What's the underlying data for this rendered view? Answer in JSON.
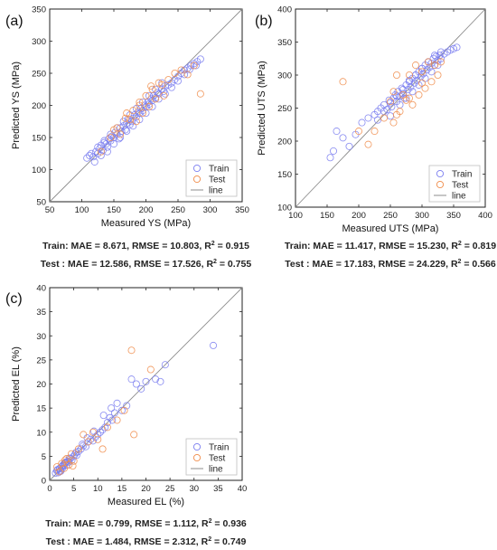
{
  "chart_data": [
    {
      "panel_label": "(a)",
      "type": "scatter",
      "xlabel": "Measured YS (MPa)",
      "ylabel": "Predicted YS (MPa)",
      "xlim": [
        50,
        350
      ],
      "ylim": [
        50,
        350
      ],
      "xticks": [
        50,
        100,
        150,
        200,
        250,
        300,
        350
      ],
      "yticks": [
        50,
        100,
        150,
        200,
        250,
        300,
        350
      ],
      "legend": [
        "Train",
        "Test",
        "line"
      ],
      "legend_position": "bottom-right",
      "identity_line": true,
      "metrics": {
        "train": {
          "prefix": "Train: ",
          "mae": "MAE = 8.671",
          "rmse": "RMSE = 10.803",
          "r2_label": "R",
          "r2_value": " = 0.915"
        },
        "test": {
          "prefix": "Test : ",
          "mae": "MAE = 12.586",
          "rmse": "RMSE = 17.526",
          "r2_label": "R",
          "r2_value": " = 0.755"
        }
      },
      "series": [
        {
          "name": "Train",
          "color": "#7b7ef0",
          "x": [
            108,
            112,
            118,
            122,
            125,
            128,
            130,
            133,
            135,
            138,
            140,
            142,
            145,
            147,
            150,
            152,
            155,
            158,
            160,
            162,
            165,
            168,
            170,
            172,
            175,
            178,
            180,
            182,
            185,
            188,
            190,
            192,
            195,
            198,
            200,
            203,
            205,
            208,
            210,
            212,
            215,
            218,
            220,
            225,
            228,
            230,
            235,
            240,
            245,
            250,
            255,
            260,
            265,
            270,
            275,
            280,
            285,
            115,
            125,
            135,
            145,
            155,
            165,
            175,
            185,
            195,
            205,
            215,
            225,
            140,
            160,
            180,
            200,
            220,
            150,
            170,
            190,
            210,
            230,
            130,
            120,
            240,
            250,
            260,
            268,
            278
          ],
          "y": [
            118,
            122,
            120,
            128,
            125,
            133,
            138,
            130,
            142,
            140,
            135,
            148,
            145,
            152,
            150,
            158,
            155,
            148,
            165,
            160,
            168,
            162,
            172,
            178,
            170,
            175,
            180,
            185,
            182,
            190,
            188,
            195,
            192,
            200,
            198,
            205,
            202,
            210,
            208,
            215,
            212,
            220,
            218,
            225,
            222,
            230,
            232,
            235,
            240,
            245,
            250,
            255,
            258,
            262,
            265,
            268,
            272,
            125,
            135,
            145,
            155,
            165,
            175,
            185,
            195,
            205,
            215,
            225,
            235,
            128,
            150,
            168,
            188,
            210,
            140,
            160,
            178,
            198,
            218,
            122,
            112,
            228,
            238,
            248,
            256,
            262
          ]
        },
        {
          "name": "Test",
          "color": "#f08c4a",
          "x": [
            130,
            145,
            155,
            160,
            168,
            175,
            180,
            185,
            190,
            195,
            200,
            205,
            210,
            215,
            220,
            228,
            235,
            245,
            255,
            265,
            275,
            285,
            150,
            170,
            190,
            208,
            225
          ],
          "y": [
            128,
            150,
            165,
            155,
            180,
            178,
            192,
            175,
            200,
            188,
            215,
            198,
            225,
            210,
            235,
            215,
            240,
            250,
            255,
            248,
            262,
            218,
            162,
            188,
            205,
            230,
            232
          ]
        }
      ]
    },
    {
      "panel_label": "(b)",
      "type": "scatter",
      "xlabel": "Measured UTS (MPa)",
      "ylabel": "Predicted UTS (MPa)",
      "xlim": [
        100,
        400
      ],
      "ylim": [
        100,
        400
      ],
      "xticks": [
        100,
        150,
        200,
        250,
        300,
        350,
        400
      ],
      "yticks": [
        100,
        150,
        200,
        250,
        300,
        350,
        400
      ],
      "legend": [
        "Train",
        "Test",
        "line"
      ],
      "legend_position": "bottom-right",
      "identity_line": true,
      "metrics": {
        "train": {
          "prefix": "Train: ",
          "mae": "MAE = 11.417",
          "rmse": "RMSE = 15.230",
          "r2_label": "R",
          "r2_value": " = 0.819"
        },
        "test": {
          "prefix": "Test : ",
          "mae": "MAE = 17.183",
          "rmse": "RMSE = 24.229",
          "r2_label": "R",
          "r2_value": " = 0.566"
        }
      },
      "series": [
        {
          "name": "Train",
          "color": "#7b7ef0",
          "x": [
            155,
            160,
            165,
            175,
            185,
            195,
            205,
            215,
            225,
            230,
            235,
            240,
            245,
            248,
            250,
            252,
            255,
            258,
            260,
            262,
            265,
            268,
            270,
            272,
            275,
            278,
            280,
            282,
            285,
            288,
            290,
            292,
            295,
            298,
            300,
            302,
            305,
            308,
            310,
            312,
            315,
            318,
            320,
            322,
            325,
            328,
            330,
            335,
            340,
            345,
            350,
            355,
            260,
            270,
            280,
            290,
            300,
            310,
            320,
            330,
            265,
            275,
            285,
            295,
            305,
            315,
            325,
            250,
            240,
            230
          ],
          "y": [
            175,
            185,
            215,
            205,
            192,
            210,
            228,
            235,
            240,
            245,
            250,
            255,
            248,
            262,
            258,
            252,
            265,
            270,
            260,
            275,
            268,
            280,
            272,
            265,
            285,
            278,
            290,
            282,
            295,
            288,
            300,
            292,
            305,
            298,
            310,
            302,
            315,
            308,
            320,
            312,
            318,
            325,
            315,
            328,
            322,
            330,
            325,
            332,
            335,
            338,
            340,
            342,
            268,
            278,
            292,
            300,
            310,
            320,
            330,
            335,
            255,
            265,
            275,
            285,
            295,
            305,
            315,
            238,
            245,
            232
          ]
        },
        {
          "name": "Test",
          "color": "#f08c4a",
          "x": [
            175,
            200,
            215,
            225,
            240,
            250,
            255,
            260,
            265,
            270,
            275,
            280,
            285,
            290,
            295,
            300,
            305,
            310,
            315,
            320,
            325,
            330,
            260,
            280,
            300,
            255
          ],
          "y": [
            290,
            215,
            195,
            215,
            235,
            260,
            228,
            300,
            245,
            270,
            262,
            300,
            255,
            315,
            270,
            305,
            280,
            320,
            290,
            315,
            300,
            320,
            240,
            265,
            288,
            275
          ]
        }
      ]
    },
    {
      "panel_label": "(c)",
      "type": "scatter",
      "xlabel": "Measured EL (%)",
      "ylabel": "Predicted EL (%)",
      "xlim": [
        0,
        40
      ],
      "ylim": [
        0,
        40
      ],
      "xticks": [
        0,
        5,
        10,
        15,
        20,
        25,
        30,
        35,
        40
      ],
      "yticks": [
        0,
        5,
        10,
        15,
        20,
        25,
        30,
        35,
        40
      ],
      "legend": [
        "Train",
        "Test",
        "line"
      ],
      "legend_position": "bottom-right",
      "identity_line": true,
      "metrics": {
        "train": {
          "prefix": "Train: ",
          "mae": "MAE = 0.799",
          "rmse": "RMSE = 1.112",
          "r2_label": "R",
          "r2_value": " = 0.936"
        },
        "test": {
          "prefix": "Test : ",
          "mae": "MAE = 1.484",
          "rmse": "RMSE = 2.312",
          "r2_label": "R",
          "r2_value": " = 0.749"
        }
      },
      "series": [
        {
          "name": "Train",
          "color": "#7b7ef0",
          "x": [
            1.2,
            1.5,
            1.8,
            2.0,
            2.2,
            2.4,
            2.6,
            2.8,
            3.0,
            3.2,
            3.5,
            3.8,
            4.0,
            4.3,
            4.6,
            5.0,
            5.3,
            5.6,
            6.0,
            6.5,
            7.0,
            7.5,
            8.0,
            8.5,
            9.0,
            9.5,
            10.0,
            10.5,
            11.0,
            11.5,
            12.0,
            12.5,
            13.0,
            13.5,
            14.0,
            15.0,
            16.0,
            17.0,
            18.0,
            19.0,
            20.0,
            22.0,
            23.0,
            24.0,
            34.0,
            2.1,
            2.7,
            3.4,
            4.1,
            5.5,
            6.8,
            7.8,
            9.2,
            11.2,
            12.8,
            1.6,
            2.3,
            3.1
          ],
          "y": [
            1.5,
            2.0,
            1.6,
            2.4,
            2.0,
            2.8,
            2.5,
            3.2,
            3.0,
            3.5,
            3.2,
            4.0,
            3.8,
            4.5,
            4.2,
            5.0,
            5.5,
            5.2,
            6.0,
            6.5,
            7.2,
            7.0,
            8.0,
            8.5,
            8.2,
            9.0,
            9.5,
            10.0,
            10.5,
            11.0,
            12.0,
            13.0,
            12.5,
            14.0,
            16.0,
            14.5,
            15.5,
            21.0,
            20.0,
            19.0,
            20.5,
            21.0,
            20.5,
            24.0,
            28.0,
            2.5,
            3.0,
            3.8,
            4.6,
            5.8,
            7.5,
            8.8,
            10.2,
            13.5,
            15.0,
            2.2,
            1.9,
            3.6
          ]
        },
        {
          "name": "Test",
          "color": "#f08c4a",
          "x": [
            1.5,
            2.0,
            2.5,
            3.0,
            3.5,
            4.0,
            4.5,
            5.0,
            6.0,
            7.0,
            8.0,
            9.0,
            10.0,
            11.0,
            12.0,
            14.0,
            15.5,
            17.0,
            17.5,
            21.0,
            3.2,
            4.8
          ],
          "y": [
            2.8,
            1.8,
            3.5,
            2.5,
            4.5,
            3.2,
            5.5,
            4.0,
            6.5,
            9.5,
            8.0,
            10.0,
            8.5,
            6.5,
            11.0,
            12.5,
            14.5,
            27.0,
            9.5,
            23.0,
            4.2,
            3.0
          ]
        }
      ]
    }
  ]
}
